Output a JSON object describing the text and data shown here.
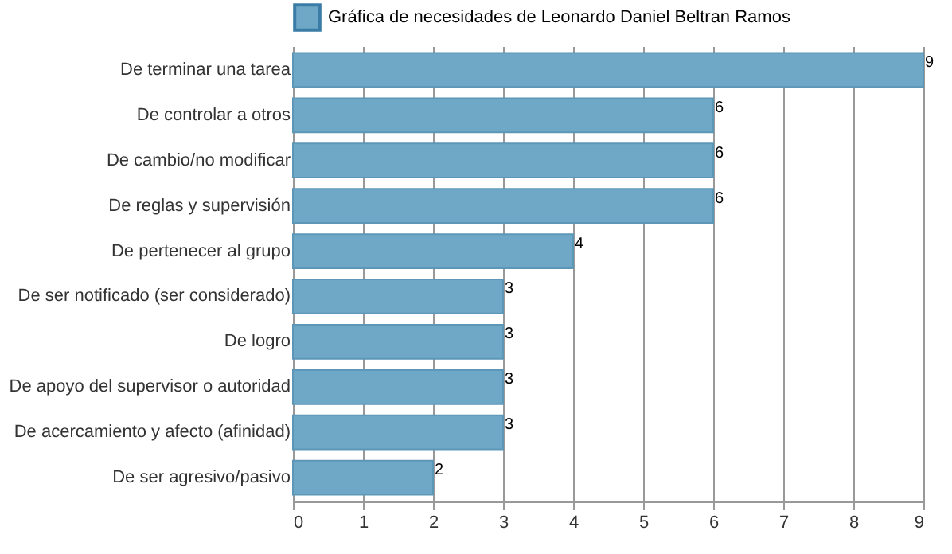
{
  "chart_data": {
    "type": "bar",
    "orientation": "horizontal",
    "categories": [
      "De terminar una tarea",
      "De controlar a otros",
      "De cambio/no modificar",
      "De reglas y supervisión",
      "De pertenecer al grupo",
      "De ser notificado (ser considerado)",
      "De logro",
      "De apoyo del supervisor o autoridad",
      "De acercamiento y afecto (afinidad)",
      "De ser agresivo/pasivo"
    ],
    "series": [
      {
        "name": "Gráfica de necesidades de Leonardo Daniel Beltran Ramos",
        "color": "#6fa8c6",
        "values": [
          9,
          6,
          6,
          6,
          4,
          3,
          3,
          3,
          3,
          2
        ]
      }
    ],
    "xlim": [
      0,
      9
    ],
    "xticks": [
      0,
      1,
      2,
      3,
      4,
      5,
      6,
      7,
      8,
      9
    ],
    "grid": "x",
    "legend": "top",
    "data_labels": true
  }
}
